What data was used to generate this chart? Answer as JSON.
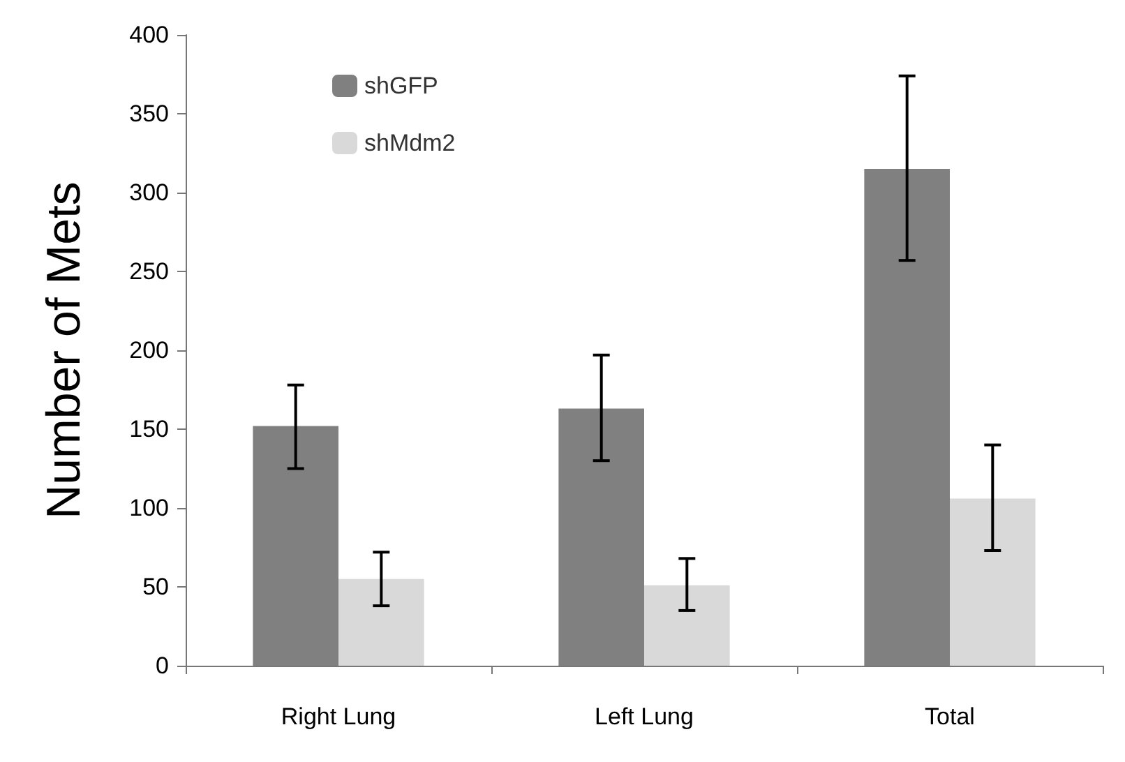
{
  "chart_data": {
    "type": "bar",
    "ylabel": "Number of Mets",
    "categories": [
      "Right Lung",
      "Left Lung",
      "Total"
    ],
    "series": [
      {
        "name": "shGFP",
        "color": "#808080",
        "values": [
          152,
          163,
          315
        ],
        "errors": [
          [
            125,
            178
          ],
          [
            130,
            197
          ],
          [
            257,
            374
          ]
        ]
      },
      {
        "name": "shMdm2",
        "color": "#d9d9d9",
        "values": [
          55,
          51,
          106
        ],
        "errors": [
          [
            38,
            72
          ],
          [
            35,
            68
          ],
          [
            73,
            140
          ]
        ]
      }
    ],
    "ylim": [
      0,
      400
    ],
    "yticks": [
      0,
      50,
      100,
      150,
      200,
      250,
      300,
      350,
      400
    ],
    "grid": false,
    "legend": "top left"
  }
}
